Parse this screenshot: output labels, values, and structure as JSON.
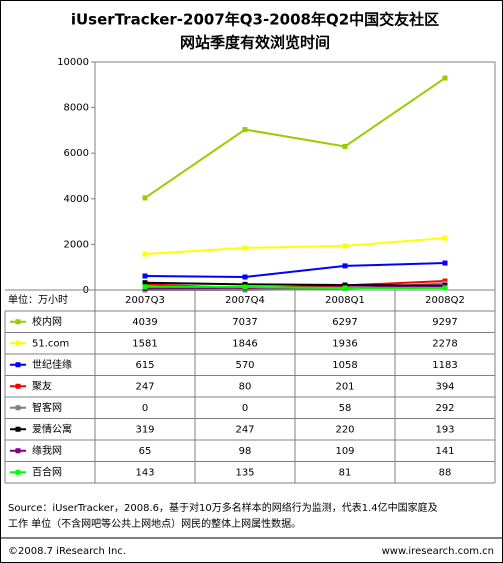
{
  "chart_data": {
    "type": "line",
    "title": "iUserTracker-2007年Q3-2008年Q2中国交友社区",
    "subtitle": "网站季度有效浏览时间",
    "unit_label": "单位：万小时",
    "categories": [
      "2007Q3",
      "2007Q4",
      "2008Q1",
      "2008Q2"
    ],
    "ylim": [
      0,
      10000
    ],
    "yticks": [
      0,
      2000,
      4000,
      6000,
      8000,
      10000
    ],
    "grid": false,
    "series": [
      {
        "name": "校内网",
        "color": "#99cc00",
        "values": [
          4039,
          7037,
          6297,
          9297
        ]
      },
      {
        "name": "51.com",
        "color": "#ffff00",
        "values": [
          1581,
          1846,
          1936,
          2278
        ]
      },
      {
        "name": "世纪佳缘",
        "color": "#0000ff",
        "values": [
          615,
          570,
          1058,
          1183
        ]
      },
      {
        "name": "聚友",
        "color": "#ff0000",
        "values": [
          247,
          80,
          201,
          394
        ]
      },
      {
        "name": "智客网",
        "color": "#808080",
        "values": [
          0,
          0,
          58,
          292
        ]
      },
      {
        "name": "爱情公寓",
        "color": "#000000",
        "values": [
          319,
          247,
          220,
          193
        ]
      },
      {
        "name": "缘我网",
        "color": "#800080",
        "values": [
          65,
          98,
          109,
          141
        ]
      },
      {
        "name": "百合网",
        "color": "#00ff00",
        "values": [
          143,
          135,
          81,
          88
        ]
      }
    ],
    "source": [
      "Source：iUserTracker，2008.6，基于对10万多名样本的网络行为监测，代表1.4亿中国家庭及",
      "工作 单位（不含网吧等公共上网地点）网民的整体上网属性数据。"
    ],
    "copyright": "©2008.7 iResearch Inc.",
    "website": "www.iresearch.com.cn"
  }
}
